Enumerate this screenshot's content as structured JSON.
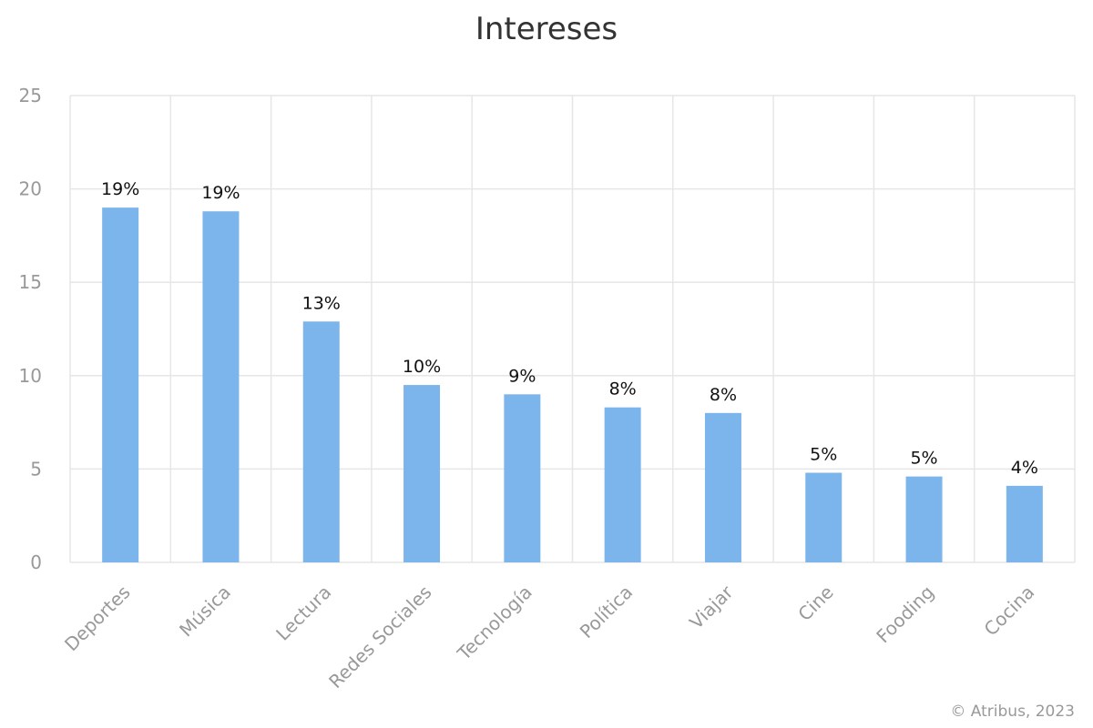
{
  "chart_data": {
    "type": "bar",
    "title": "Intereses",
    "categories": [
      "Deportes",
      "Música",
      "Lectura",
      "Redes Sociales",
      "Tecnología",
      "Política",
      "Viajar",
      "Cine",
      "Fooding",
      "Cocina"
    ],
    "values": [
      19.0,
      18.8,
      12.9,
      9.5,
      9.0,
      8.3,
      8.0,
      4.8,
      4.6,
      4.1
    ],
    "data_labels": [
      "19%",
      "19%",
      "13%",
      "10%",
      "9%",
      "8%",
      "8%",
      "5%",
      "5%",
      "4%"
    ],
    "yticks": [
      "0",
      "5",
      "10",
      "15",
      "20",
      "25"
    ],
    "ylim": [
      0,
      25
    ],
    "grid": true,
    "bar_color": "#7cb5ec",
    "grid_color": "#e6e6e6"
  },
  "footer": {
    "credit": "© Atribus, 2023"
  }
}
